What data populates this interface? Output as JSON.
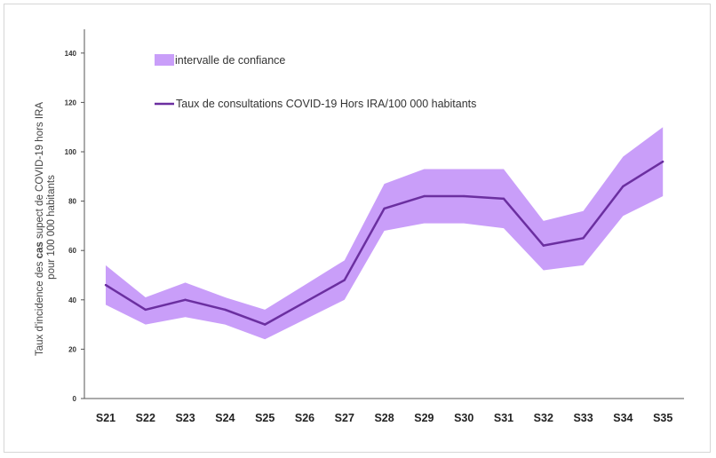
{
  "chart_data": {
    "type": "line",
    "categories": [
      "S21",
      "S22",
      "S23",
      "S24",
      "S25",
      "S26",
      "S27",
      "S28",
      "S29",
      "S30",
      "S31",
      "S32",
      "S33",
      "S34",
      "S35"
    ],
    "series": [
      {
        "name": "Taux de consultations COVID-19 Hors IRA/100 000 habitants",
        "values": [
          46,
          36,
          40,
          36,
          30,
          39,
          48,
          77,
          82,
          82,
          81,
          62,
          65,
          86,
          96
        ]
      }
    ],
    "confidence_interval": {
      "name": "intervalle de confiance",
      "lower": [
        38,
        30,
        33,
        30,
        24,
        32,
        40,
        68,
        71,
        71,
        69,
        52,
        54,
        74,
        82
      ],
      "upper": [
        54,
        41,
        47,
        41,
        36,
        46,
        56,
        87,
        93,
        93,
        93,
        72,
        76,
        98,
        110
      ]
    },
    "ylabel_line1_pre": "Taux d'incidence des ",
    "ylabel_line1_bold": "cas",
    "ylabel_line1_post": " supect de COVID-19  hors  IRA",
    "ylabel_line2": "pour 100 000 habitants",
    "yticks": [
      "0",
      "20",
      "40",
      "60",
      "80",
      "100",
      "120",
      "140"
    ],
    "ylim": [
      0,
      150
    ],
    "grid": false,
    "legend_position": "top-left",
    "colors": {
      "band": "#c99ef9",
      "line": "#6b2fa0",
      "axis": "#555555"
    }
  }
}
